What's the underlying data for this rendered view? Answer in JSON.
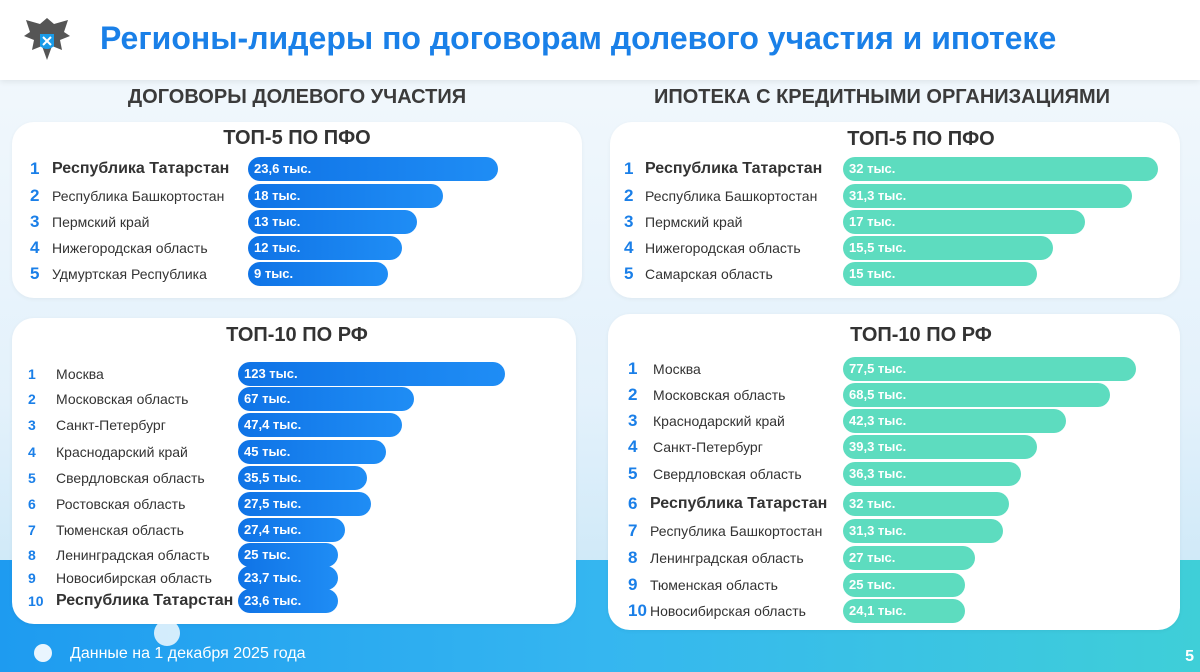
{
  "header": {
    "title": "Регионы-лидеры по договорам долевого участия и ипотеке"
  },
  "left": {
    "heading": "ДОГОВОРЫ ДОЛЕВОГО УЧАСТИЯ",
    "top5": {
      "title": "ТОП-5 ПО ПФО",
      "rows": [
        {
          "rank": "1",
          "name": "Республика Татарстан",
          "value": "23,6 тыс.",
          "bold": true
        },
        {
          "rank": "2",
          "name": "Республика Башкортостан",
          "value": "18 тыс."
        },
        {
          "rank": "3",
          "name": "Пермский край",
          "value": "13 тыс."
        },
        {
          "rank": "4",
          "name": "Нижегородская область",
          "value": "12 тыс."
        },
        {
          "rank": "5",
          "name": "Удмуртская Республика",
          "value": "9 тыс."
        }
      ]
    },
    "top10": {
      "title": "ТОП-10 ПО РФ",
      "rows": [
        {
          "rank": "1",
          "name": "Москва",
          "value": "123 тыс."
        },
        {
          "rank": "2",
          "name": "Московская область",
          "value": "67 тыс."
        },
        {
          "rank": "3",
          "name": "Санкт-Петербург",
          "value": "47,4 тыс."
        },
        {
          "rank": "4",
          "name": "Краснодарский край",
          "value": "45 тыс."
        },
        {
          "rank": "5",
          "name": "Свердловская область",
          "value": "35,5 тыс."
        },
        {
          "rank": "6",
          "name": "Ростовская область",
          "value": "27,5 тыс."
        },
        {
          "rank": "7",
          "name": "Тюменская область",
          "value": "27,4 тыс."
        },
        {
          "rank": "8",
          "name": "Ленинградская область",
          "value": "25 тыс."
        },
        {
          "rank": "9",
          "name": "Новосибирская область",
          "value": "23,7 тыс."
        },
        {
          "rank": "10",
          "name": "Республика Татарстан",
          "value": "23,6 тыс.",
          "bold": true
        }
      ]
    }
  },
  "right": {
    "heading": "ИПОТЕКА С КРЕДИТНЫМИ ОРГАНИЗАЦИЯМИ",
    "top5": {
      "title": "ТОП-5 ПО ПФО",
      "rows": [
        {
          "rank": "1",
          "name": "Республика Татарстан",
          "value": "32 тыс.",
          "bold": true
        },
        {
          "rank": "2",
          "name": "Республика Башкортостан",
          "value": "31,3 тыс."
        },
        {
          "rank": "3",
          "name": "Пермский край",
          "value": "17 тыс."
        },
        {
          "rank": "4",
          "name": "Нижегородская область",
          "value": "15,5 тыс."
        },
        {
          "rank": "5",
          "name": "Самарская область",
          "value": "15 тыс."
        }
      ]
    },
    "top10": {
      "title": "ТОП-10 ПО РФ",
      "rows": [
        {
          "rank": "1",
          "name": "Москва",
          "value": "77,5 тыс."
        },
        {
          "rank": "2",
          "name": "Московская область",
          "value": "68,5 тыс."
        },
        {
          "rank": "3",
          "name": "Краснодарский край",
          "value": "42,3 тыс."
        },
        {
          "rank": "4",
          "name": "Санкт-Петербург",
          "value": "39,3 тыс."
        },
        {
          "rank": "5",
          "name": "Свердловская область",
          "value": "36,3 тыс."
        },
        {
          "rank": "6",
          "name": "Республика Татарстан",
          "value": "32 тыс.",
          "bold": true
        },
        {
          "rank": "7",
          "name": "Республика Башкортостан",
          "value": "31,3 тыс."
        },
        {
          "rank": "8",
          "name": "Ленинградская область",
          "value": "27 тыс."
        },
        {
          "rank": "9",
          "name": "Тюменская область",
          "value": "25 тыс."
        },
        {
          "rank": "10",
          "name": "Новосибирская область",
          "value": "24,1 тыс."
        }
      ]
    }
  },
  "footer": {
    "note": "Данные на 1 декабря 2025 года",
    "page": "5"
  }
}
